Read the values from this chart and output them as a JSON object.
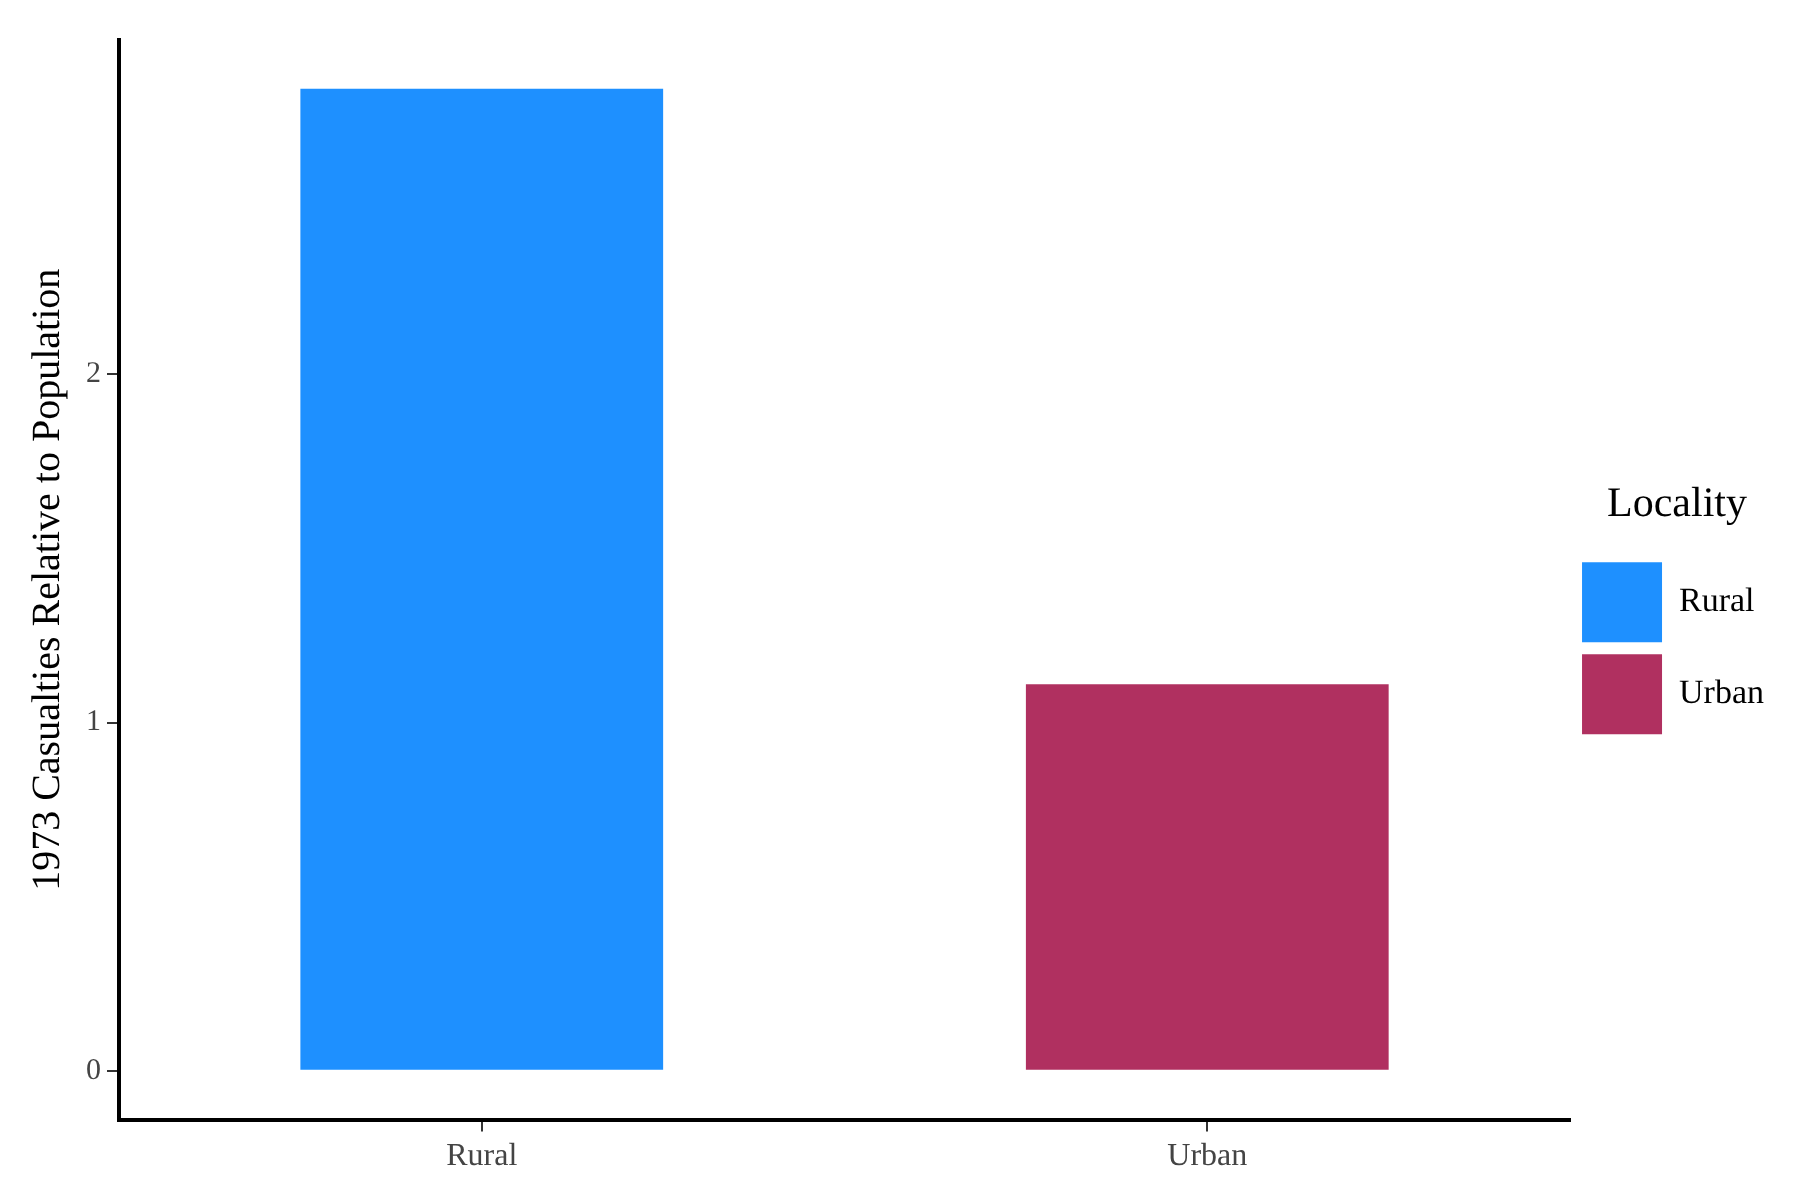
{
  "chart_data": {
    "type": "bar",
    "ylabel": "1973 Casualties Relative to Population",
    "legend_title": "Locality",
    "legend": "right",
    "grid": false,
    "categories": [
      "Rural",
      "Urban"
    ],
    "series": [
      {
        "name": "Rural",
        "color": "#1e90ff",
        "values": [
          2.82,
          null
        ]
      },
      {
        "name": "Urban",
        "color": "#b03060",
        "values": [
          null,
          1.11
        ]
      }
    ],
    "ylim": [
      -0.14,
      2.96
    ],
    "yticks": [
      0,
      1,
      2
    ]
  }
}
